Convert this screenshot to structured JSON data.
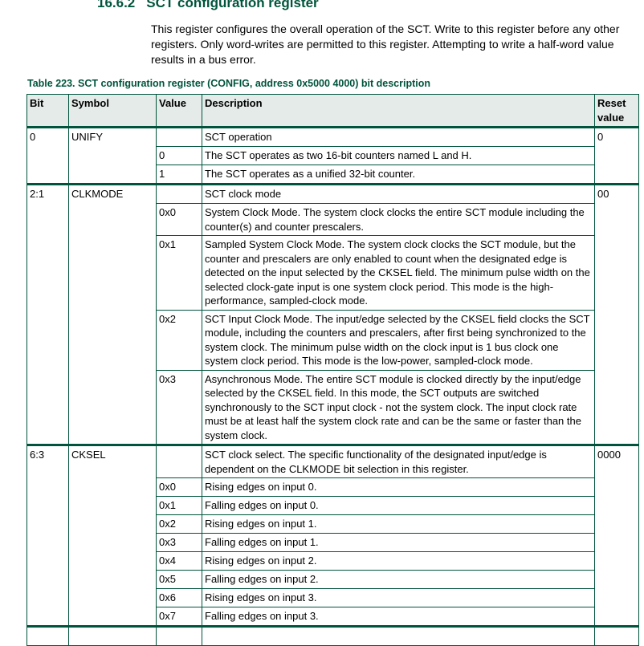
{
  "section": {
    "number": "16.6.2",
    "title": "SCT configuration register"
  },
  "intro": "This register configures the overall operation of the SCT. Write to this register before any other registers. Only word-writes are permitted to this register. Attempting to write a half-word value results in a bus error.",
  "caption": "Table 223.  SCT configuration register (CONFIG, address 0x5000 4000) bit description",
  "headers": {
    "bit": "Bit",
    "symbol": "Symbol",
    "value": "Value",
    "description": "Description",
    "reset": "Reset value"
  },
  "fields": [
    {
      "bit": "0",
      "symbol": "UNIFY",
      "description": "SCT operation",
      "reset": "0",
      "values": [
        {
          "value": "0",
          "description": "The SCT operates as two 16-bit counters named L and H."
        },
        {
          "value": "1",
          "description": "The SCT operates as a unified 32-bit counter."
        }
      ]
    },
    {
      "bit": "2:1",
      "symbol": "CLKMODE",
      "description": "SCT clock mode",
      "reset": "00",
      "values": [
        {
          "value": "0x0",
          "description": "System Clock Mode. The system clock clocks the entire SCT module including the counter(s) and counter prescalers."
        },
        {
          "value": "0x1",
          "description": "Sampled System Clock Mode. The system clock clocks the SCT module, but the counter and prescalers are only enabled to count when the designated edge is detected on the input selected by the CKSEL field. The minimum pulse width on the selected clock-gate input is one system clock period. This mode is the high-performance, sampled-clock mode."
        },
        {
          "value": "0x2",
          "description": "SCT Input Clock Mode. The input/edge selected by the CKSEL field clocks the SCT module, including the counters and prescalers, after first being synchronized to the system clock. The minimum pulse width on the clock input is 1 bus clock one system clock period. This mode is the low-power, sampled-clock mode."
        },
        {
          "value": "0x3",
          "description": "Asynchronous Mode. The entire SCT module is clocked directly by the input/edge selected by the CKSEL field. In this mode, the SCT outputs are switched synchronously to the SCT input clock - not the system clock. The input clock rate must be at least half the system clock rate and can be the same or faster than the system clock."
        }
      ]
    },
    {
      "bit": "6:3",
      "symbol": "CKSEL",
      "description": "SCT clock select. The specific functionality of the designated input/edge is dependent on the CLKMODE bit selection in this register.",
      "reset": "0000",
      "values": [
        {
          "value": "0x0",
          "description": "Rising edges on input 0."
        },
        {
          "value": "0x1",
          "description": "Falling edges on input 0."
        },
        {
          "value": "0x2",
          "description": "Rising edges on input 1."
        },
        {
          "value": "0x3",
          "description": "Falling edges on input 1."
        },
        {
          "value": "0x4",
          "description": "Rising edges on input 2."
        },
        {
          "value": "0x5",
          "description": "Falling edges on input 2."
        },
        {
          "value": "0x6",
          "description": "Rising edges on input 3."
        },
        {
          "value": "0x7",
          "description": "Falling edges on input 3."
        }
      ]
    }
  ]
}
